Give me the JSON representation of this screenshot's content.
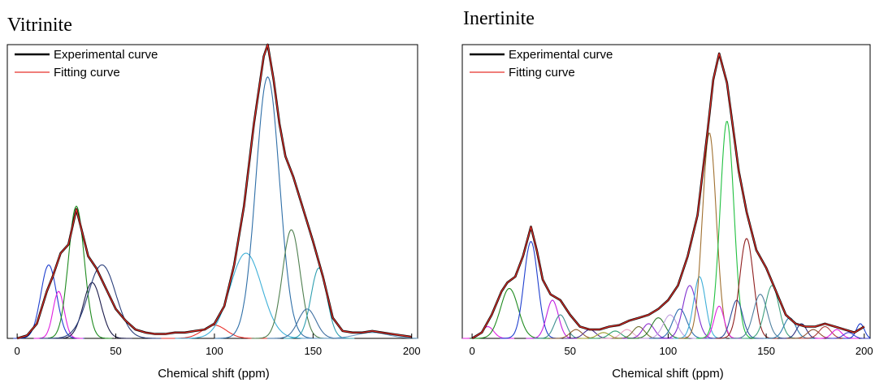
{
  "chart_data": [
    {
      "type": "line",
      "title": "Vitrinite",
      "xlabel": "Chemical shift (ppm)",
      "ylabel": "",
      "xlim": [
        -5,
        203
      ],
      "ylim": [
        0,
        1.0
      ],
      "xticks": [
        0,
        50,
        100,
        150,
        200
      ],
      "grid": false,
      "legend": {
        "position": "top-left"
      },
      "series": [
        {
          "name": "Experimental curve",
          "role": "experimental",
          "color": "#000000",
          "x": [
            0,
            5,
            10,
            15,
            18,
            22,
            26,
            30,
            33,
            36,
            40,
            45,
            50,
            55,
            60,
            65,
            70,
            75,
            80,
            85,
            90,
            95,
            100,
            105,
            110,
            115,
            120,
            125,
            127,
            130,
            133,
            136,
            140,
            145,
            150,
            155,
            160,
            165,
            170,
            175,
            180,
            185,
            190,
            195,
            200
          ],
          "y": [
            0.0,
            0.01,
            0.05,
            0.16,
            0.21,
            0.29,
            0.32,
            0.44,
            0.36,
            0.28,
            0.24,
            0.17,
            0.1,
            0.06,
            0.03,
            0.02,
            0.015,
            0.015,
            0.02,
            0.02,
            0.025,
            0.03,
            0.05,
            0.11,
            0.25,
            0.45,
            0.73,
            0.96,
            1.0,
            0.88,
            0.73,
            0.62,
            0.55,
            0.44,
            0.33,
            0.21,
            0.07,
            0.025,
            0.02,
            0.02,
            0.025,
            0.02,
            0.015,
            0.01,
            0.005
          ]
        },
        {
          "name": "Fitting curve",
          "role": "fit",
          "color": "#e8302a",
          "x": [
            0,
            5,
            10,
            15,
            18,
            22,
            26,
            30,
            33,
            36,
            40,
            45,
            50,
            55,
            60,
            65,
            70,
            75,
            80,
            85,
            90,
            95,
            100,
            105,
            110,
            115,
            120,
            125,
            127,
            130,
            133,
            136,
            140,
            145,
            150,
            155,
            160,
            165,
            170,
            175,
            180,
            185,
            190,
            195,
            200
          ],
          "y": [
            0.0,
            0.01,
            0.05,
            0.16,
            0.21,
            0.29,
            0.32,
            0.44,
            0.36,
            0.28,
            0.24,
            0.17,
            0.1,
            0.06,
            0.03,
            0.02,
            0.015,
            0.015,
            0.02,
            0.02,
            0.025,
            0.03,
            0.05,
            0.11,
            0.25,
            0.45,
            0.73,
            0.96,
            1.0,
            0.88,
            0.73,
            0.62,
            0.55,
            0.44,
            0.33,
            0.21,
            0.07,
            0.025,
            0.02,
            0.02,
            0.025,
            0.02,
            0.015,
            0.01,
            0.005
          ]
        }
      ],
      "peaks": [
        {
          "center": 16,
          "height": 0.25,
          "width": 4.0,
          "color": "#1f3fcf"
        },
        {
          "center": 21,
          "height": 0.16,
          "width": 2.8,
          "color": "#e020e0"
        },
        {
          "center": 30,
          "height": 0.45,
          "width": 4.0,
          "color": "#1e8a1e"
        },
        {
          "center": 38,
          "height": 0.19,
          "width": 4.5,
          "color": "#1a1a4a"
        },
        {
          "center": 43,
          "height": 0.25,
          "width": 7.0,
          "color": "#2a3f7a"
        },
        {
          "center": 100,
          "height": 0.045,
          "width": 6.0,
          "color": "#e8302a"
        },
        {
          "center": 116,
          "height": 0.29,
          "width": 8.0,
          "color": "#3fb0d8"
        },
        {
          "center": 127,
          "height": 0.89,
          "width": 6.0,
          "color": "#2f6fa8"
        },
        {
          "center": 139,
          "height": 0.37,
          "width": 4.5,
          "color": "#4f7f4f"
        },
        {
          "center": 147,
          "height": 0.1,
          "width": 4.5,
          "color": "#3f6fa0"
        },
        {
          "center": 153,
          "height": 0.24,
          "width": 4.0,
          "color": "#2f9fb0"
        },
        {
          "center": 180,
          "height": 0.02,
          "width": 8.0,
          "color": "#6fa0c8"
        }
      ]
    },
    {
      "type": "line",
      "title": "Inertinite",
      "xlabel": "Chemical shift (ppm)",
      "ylabel": "",
      "xlim": [
        -5,
        203
      ],
      "ylim": [
        0,
        1.0
      ],
      "xticks": [
        0,
        50,
        100,
        150,
        200
      ],
      "grid": false,
      "legend": {
        "position": "top-left"
      },
      "series": [
        {
          "name": "Experimental curve",
          "role": "experimental",
          "color": "#000000",
          "x": [
            0,
            5,
            10,
            15,
            18,
            22,
            26,
            30,
            33,
            36,
            40,
            45,
            50,
            55,
            60,
            65,
            70,
            75,
            80,
            85,
            90,
            95,
            100,
            105,
            110,
            115,
            120,
            123,
            126,
            130,
            133,
            136,
            140,
            145,
            150,
            155,
            160,
            165,
            170,
            175,
            180,
            185,
            190,
            195,
            200
          ],
          "y": [
            0.0,
            0.02,
            0.08,
            0.16,
            0.19,
            0.21,
            0.28,
            0.38,
            0.3,
            0.2,
            0.15,
            0.13,
            0.08,
            0.04,
            0.03,
            0.03,
            0.04,
            0.045,
            0.06,
            0.07,
            0.08,
            0.1,
            0.13,
            0.18,
            0.28,
            0.42,
            0.7,
            0.88,
            0.97,
            0.87,
            0.72,
            0.57,
            0.43,
            0.3,
            0.24,
            0.16,
            0.08,
            0.05,
            0.04,
            0.04,
            0.05,
            0.04,
            0.03,
            0.02,
            0.04
          ]
        },
        {
          "name": "Fitting curve",
          "role": "fit",
          "color": "#e8302a",
          "x": [
            0,
            5,
            10,
            15,
            18,
            22,
            26,
            30,
            33,
            36,
            40,
            45,
            50,
            55,
            60,
            65,
            70,
            75,
            80,
            85,
            90,
            95,
            100,
            105,
            110,
            115,
            120,
            123,
            126,
            130,
            133,
            136,
            140,
            145,
            150,
            155,
            160,
            165,
            170,
            175,
            180,
            185,
            190,
            195,
            200
          ],
          "y": [
            0.0,
            0.02,
            0.08,
            0.16,
            0.19,
            0.21,
            0.28,
            0.38,
            0.3,
            0.2,
            0.15,
            0.13,
            0.08,
            0.04,
            0.03,
            0.03,
            0.04,
            0.045,
            0.06,
            0.07,
            0.08,
            0.1,
            0.13,
            0.18,
            0.28,
            0.42,
            0.7,
            0.88,
            0.97,
            0.87,
            0.72,
            0.57,
            0.43,
            0.3,
            0.24,
            0.16,
            0.08,
            0.05,
            0.04,
            0.04,
            0.05,
            0.04,
            0.03,
            0.02,
            0.04
          ]
        }
      ],
      "peaks": [
        {
          "center": 8,
          "height": 0.04,
          "width": 3.0,
          "color": "#e020e0"
        },
        {
          "center": 19,
          "height": 0.17,
          "width": 4.5,
          "color": "#1e8a1e"
        },
        {
          "center": 30,
          "height": 0.33,
          "width": 3.5,
          "color": "#1f3fcf"
        },
        {
          "center": 41,
          "height": 0.13,
          "width": 3.0,
          "color": "#c020e0"
        },
        {
          "center": 45,
          "height": 0.08,
          "width": 3.0,
          "color": "#3f8f8f"
        },
        {
          "center": 53,
          "height": 0.03,
          "width": 3.0,
          "color": "#8f5f2f"
        },
        {
          "center": 60,
          "height": 0.03,
          "width": 3.0,
          "color": "#4f2f8f"
        },
        {
          "center": 67,
          "height": 0.02,
          "width": 3.0,
          "color": "#9f9f2f"
        },
        {
          "center": 73,
          "height": 0.025,
          "width": 3.0,
          "color": "#2f9f6f"
        },
        {
          "center": 79,
          "height": 0.03,
          "width": 3.0,
          "color": "#e8a0c0"
        },
        {
          "center": 85,
          "height": 0.04,
          "width": 3.0,
          "color": "#6f6f2f"
        },
        {
          "center": 90,
          "height": 0.05,
          "width": 3.0,
          "color": "#8f2fcf"
        },
        {
          "center": 95,
          "height": 0.07,
          "width": 3.5,
          "color": "#2f7f2f"
        },
        {
          "center": 101,
          "height": 0.08,
          "width": 3.5,
          "color": "#c0a0e0"
        },
        {
          "center": 106,
          "height": 0.1,
          "width": 3.5,
          "color": "#2f6faf"
        },
        {
          "center": 111,
          "height": 0.18,
          "width": 3.5,
          "color": "#7f2fcf"
        },
        {
          "center": 116,
          "height": 0.21,
          "width": 3.0,
          "color": "#3fafd8"
        },
        {
          "center": 121,
          "height": 0.7,
          "width": 3.5,
          "color": "#a07030"
        },
        {
          "center": 126,
          "height": 0.11,
          "width": 2.5,
          "color": "#e020e0"
        },
        {
          "center": 130,
          "height": 0.74,
          "width": 3.5,
          "color": "#20c040"
        },
        {
          "center": 135,
          "height": 0.13,
          "width": 3.0,
          "color": "#2f4f9f"
        },
        {
          "center": 140,
          "height": 0.34,
          "width": 3.5,
          "color": "#8f1f1f"
        },
        {
          "center": 147,
          "height": 0.15,
          "width": 3.5,
          "color": "#4f7f9f"
        },
        {
          "center": 153,
          "height": 0.18,
          "width": 3.5,
          "color": "#3fa07f"
        },
        {
          "center": 162,
          "height": 0.07,
          "width": 3.0,
          "color": "#2f7faf"
        },
        {
          "center": 168,
          "height": 0.05,
          "width": 2.5,
          "color": "#2f2f7f"
        },
        {
          "center": 174,
          "height": 0.03,
          "width": 3.0,
          "color": "#8f4f2f"
        },
        {
          "center": 180,
          "height": 0.04,
          "width": 3.0,
          "color": "#af3f3f"
        },
        {
          "center": 186,
          "height": 0.03,
          "width": 2.5,
          "color": "#e020e0"
        },
        {
          "center": 192,
          "height": 0.02,
          "width": 2.5,
          "color": "#3f3fcf"
        },
        {
          "center": 198,
          "height": 0.05,
          "width": 2.0,
          "color": "#1f3fcf"
        }
      ]
    }
  ]
}
